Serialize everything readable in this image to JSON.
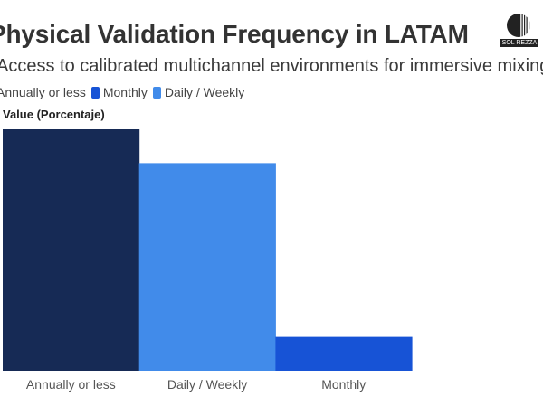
{
  "header": {
    "title": "Physical Validation Frequency in LATAM",
    "subtitle": "Access to calibrated multichannel environments for immersive mixing",
    "logo_text": "SOL REZZA"
  },
  "chart_data": {
    "type": "bar",
    "title": "Physical Validation Frequency in LATAM",
    "subtitle": "Access to calibrated multichannel environments for immersive mixing",
    "xlabel": "",
    "ylabel": "Value (Porcentaje)",
    "categories": [
      "Annually or less",
      "Daily / Weekly",
      "Monthly"
    ],
    "values": [
      50,
      43,
      7
    ],
    "colors": [
      "#162a55",
      "#418bea",
      "#1753d6"
    ],
    "ylim": [
      0,
      50
    ],
    "grid": false,
    "legend": {
      "position": "top-left",
      "entries": [
        {
          "label": "Annually or less",
          "color": "#162a55"
        },
        {
          "label": "Monthly",
          "color": "#1753d6"
        },
        {
          "label": "Daily / Weekly",
          "color": "#418bea"
        }
      ]
    }
  }
}
